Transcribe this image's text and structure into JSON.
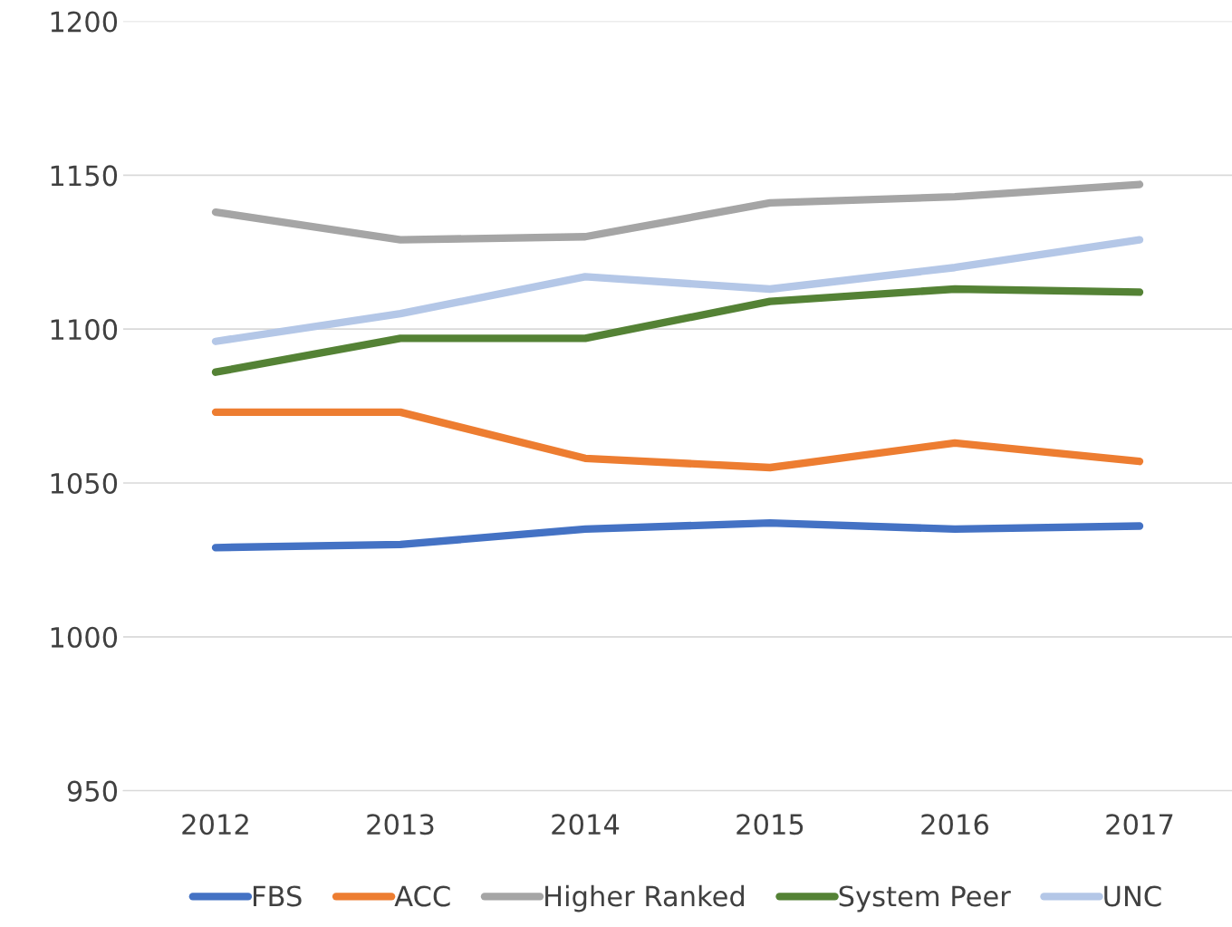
{
  "chart_data": {
    "type": "line",
    "categories": [
      "2012",
      "2013",
      "2014",
      "2015",
      "2016",
      "2017"
    ],
    "series": [
      {
        "name": "FBS",
        "color": "#4472c4",
        "values": [
          1029,
          1030,
          1035,
          1037,
          1035,
          1036
        ]
      },
      {
        "name": "ACC",
        "color": "#ed7d31",
        "values": [
          1073,
          1073,
          1058,
          1055,
          1063,
          1057
        ]
      },
      {
        "name": "Higher Ranked",
        "color": "#a5a5a5",
        "values": [
          1138,
          1129,
          1130,
          1141,
          1143,
          1147
        ]
      },
      {
        "name": "System Peer",
        "color": "#548235",
        "values": [
          1086,
          1097,
          1097,
          1109,
          1113,
          1112
        ]
      },
      {
        "name": "UNC",
        "color": "#b4c7e7",
        "values": [
          1096,
          1105,
          1117,
          1113,
          1120,
          1129
        ]
      }
    ],
    "ylim": [
      950,
      1200
    ],
    "yticks": [
      950,
      1000,
      1050,
      1100,
      1150,
      1200
    ],
    "grid": "y",
    "legend": "bottom",
    "marker": "none",
    "line_style": "solid"
  }
}
